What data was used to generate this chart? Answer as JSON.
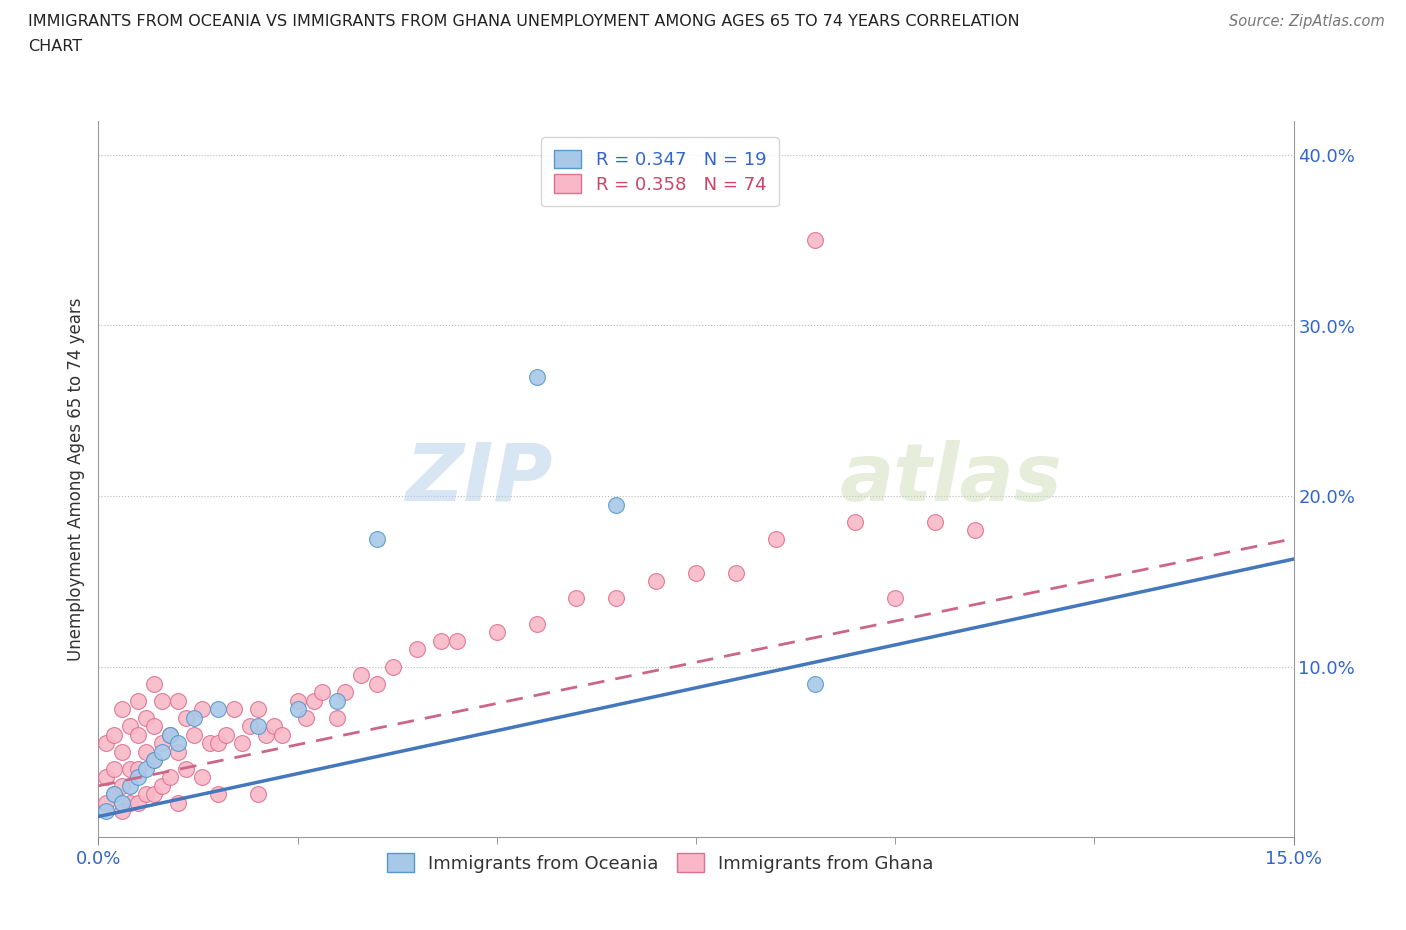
{
  "title_line1": "IMMIGRANTS FROM OCEANIA VS IMMIGRANTS FROM GHANA UNEMPLOYMENT AMONG AGES 65 TO 74 YEARS CORRELATION",
  "title_line2": "CHART",
  "source": "Source: ZipAtlas.com",
  "ylabel": "Unemployment Among Ages 65 to 74 years",
  "xlim": [
    0.0,
    0.15
  ],
  "ylim": [
    0.0,
    0.42
  ],
  "ytick_positions": [
    0.0,
    0.1,
    0.2,
    0.3,
    0.4
  ],
  "ytick_labels": [
    "",
    "10.0%",
    "20.0%",
    "30.0%",
    "40.0%"
  ],
  "watermark_zip": "ZIP",
  "watermark_atlas": "atlas",
  "color_oceania_fill": "#a8c8e8",
  "color_oceania_edge": "#5599cc",
  "color_ghana_fill": "#f8b8c8",
  "color_ghana_edge": "#e07090",
  "color_line_oceania": "#4477bb",
  "color_line_ghana": "#cc6688",
  "color_tick_labels": "#3366cc",
  "legend_r_oceania": "R = 0.347",
  "legend_n_oceania": "N = 19",
  "legend_r_ghana": "R = 0.358",
  "legend_n_ghana": "N = 74",
  "oceania_x": [
    0.001,
    0.002,
    0.003,
    0.004,
    0.005,
    0.006,
    0.007,
    0.008,
    0.009,
    0.01,
    0.012,
    0.015,
    0.02,
    0.025,
    0.03,
    0.035,
    0.055,
    0.065,
    0.09
  ],
  "oceania_y": [
    0.015,
    0.025,
    0.02,
    0.03,
    0.035,
    0.04,
    0.045,
    0.05,
    0.06,
    0.055,
    0.07,
    0.075,
    0.065,
    0.075,
    0.08,
    0.175,
    0.27,
    0.195,
    0.09
  ],
  "ghana_x": [
    0.001,
    0.001,
    0.001,
    0.002,
    0.002,
    0.002,
    0.003,
    0.003,
    0.003,
    0.003,
    0.004,
    0.004,
    0.004,
    0.005,
    0.005,
    0.005,
    0.005,
    0.006,
    0.006,
    0.006,
    0.007,
    0.007,
    0.007,
    0.007,
    0.008,
    0.008,
    0.008,
    0.009,
    0.009,
    0.01,
    0.01,
    0.01,
    0.011,
    0.011,
    0.012,
    0.013,
    0.013,
    0.014,
    0.015,
    0.015,
    0.016,
    0.017,
    0.018,
    0.019,
    0.02,
    0.02,
    0.021,
    0.022,
    0.023,
    0.025,
    0.026,
    0.027,
    0.028,
    0.03,
    0.031,
    0.033,
    0.035,
    0.037,
    0.04,
    0.043,
    0.045,
    0.05,
    0.055,
    0.06,
    0.065,
    0.07,
    0.075,
    0.08,
    0.085,
    0.09,
    0.095,
    0.1,
    0.105,
    0.11
  ],
  "ghana_y": [
    0.02,
    0.035,
    0.055,
    0.025,
    0.04,
    0.06,
    0.015,
    0.03,
    0.05,
    0.075,
    0.02,
    0.04,
    0.065,
    0.02,
    0.04,
    0.06,
    0.08,
    0.025,
    0.05,
    0.07,
    0.025,
    0.045,
    0.065,
    0.09,
    0.03,
    0.055,
    0.08,
    0.035,
    0.06,
    0.02,
    0.05,
    0.08,
    0.04,
    0.07,
    0.06,
    0.035,
    0.075,
    0.055,
    0.025,
    0.055,
    0.06,
    0.075,
    0.055,
    0.065,
    0.025,
    0.075,
    0.06,
    0.065,
    0.06,
    0.08,
    0.07,
    0.08,
    0.085,
    0.07,
    0.085,
    0.095,
    0.09,
    0.1,
    0.11,
    0.115,
    0.115,
    0.12,
    0.125,
    0.14,
    0.14,
    0.15,
    0.155,
    0.155,
    0.175,
    0.35,
    0.185,
    0.14,
    0.185,
    0.18
  ],
  "line_oceania_x0": 0.0,
  "line_oceania_y0": 0.012,
  "line_oceania_x1": 0.15,
  "line_oceania_y1": 0.163,
  "line_ghana_x0": 0.0,
  "line_ghana_y0": 0.03,
  "line_ghana_x1": 0.15,
  "line_ghana_y1": 0.175
}
